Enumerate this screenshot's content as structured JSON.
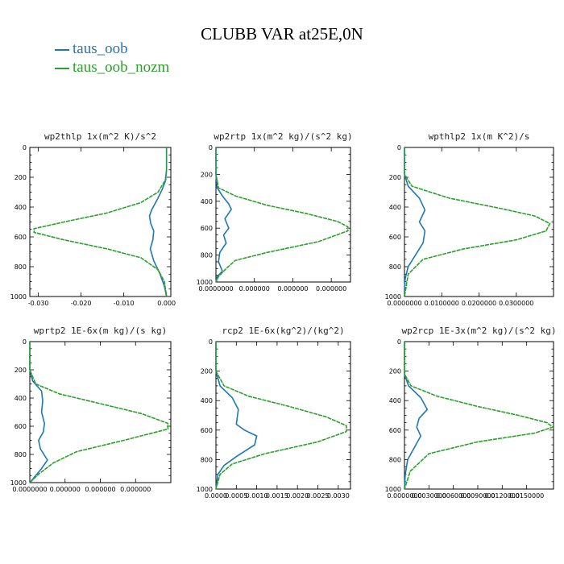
{
  "title": "CLUBB VAR at25E,0N",
  "legend": [
    {
      "label": "taus_oob",
      "color": "#1f77b4"
    },
    {
      "label": "taus_oob_nozm",
      "color": "#2ca02c"
    }
  ],
  "chart_data": [
    {
      "type": "line",
      "title": "wp2thlp  1x(m^2 K)/s^2",
      "xlim": [
        -0.032,
        0.001
      ],
      "ylim": [
        1000,
        0
      ],
      "x_tick_labels": [
        "-0.030",
        "-0.020",
        "-0.010",
        "0.000"
      ],
      "x_ticks": [
        -0.03,
        -0.02,
        -0.01,
        0.0
      ],
      "y_tick_labels": [
        "0",
        "200",
        "400",
        "600",
        "800",
        "1000"
      ],
      "series": [
        {
          "name": "taus_oob",
          "x": [
            0,
            0,
            -0.0002,
            -0.001,
            -0.002,
            -0.0035,
            -0.004,
            -0.0037,
            -0.003,
            -0.0032,
            -0.0038,
            -0.003,
            -0.0015,
            -0.0005,
            0
          ],
          "y": [
            0,
            150,
            220,
            280,
            340,
            420,
            460,
            510,
            560,
            620,
            680,
            760,
            850,
            930,
            1000
          ]
        },
        {
          "name": "taus_oob_nozm",
          "x": [
            0,
            0,
            -0.0003,
            -0.002,
            -0.006,
            -0.014,
            -0.024,
            -0.031,
            -0.031,
            -0.024,
            -0.014,
            -0.006,
            -0.002,
            -0.0005,
            0
          ],
          "y": [
            0,
            150,
            220,
            300,
            370,
            440,
            500,
            545,
            570,
            620,
            680,
            740,
            820,
            900,
            1000
          ]
        }
      ]
    },
    {
      "type": "line",
      "title": "wp2rtp  1x(m^2 kg)/(s^2 kg)",
      "xlim": [
        0,
        1.05e-06
      ],
      "ylim": [
        1000,
        0
      ],
      "x_tick_labels": [
        "0.0000000",
        "0.000000",
        "0.000000",
        "0.000000"
      ],
      "x_ticks": [
        0,
        3e-07,
        6e-07,
        9e-07
      ],
      "y_tick_labels": [
        "0",
        "200",
        "400",
        "600",
        "800",
        "1000"
      ],
      "series": [
        {
          "name": "taus_oob",
          "x": [
            0,
            0,
            1e-08,
            5e-08,
            1e-07,
            1.2e-07,
            7e-08,
            1e-07,
            6e-08,
            8e-08,
            3e-08,
            2e-08,
            5e-08,
            1e-08,
            0
          ],
          "y": [
            0,
            200,
            300,
            360,
            420,
            460,
            530,
            600,
            650,
            710,
            780,
            850,
            920,
            960,
            1000
          ]
        },
        {
          "name": "taus_oob_nozm",
          "x": [
            0,
            0,
            2e-08,
            1.5e-07,
            4e-07,
            7e-07,
            9.5e-07,
            1.03e-06,
            1.03e-06,
            8e-07,
            4e-07,
            1.5e-07,
            8e-08,
            2e-08,
            0
          ],
          "y": [
            0,
            200,
            300,
            360,
            430,
            490,
            550,
            590,
            620,
            700,
            780,
            840,
            900,
            960,
            1000
          ]
        }
      ]
    },
    {
      "type": "line",
      "title": "wpthlp2  1x(m K^2)/s",
      "xlim": [
        0,
        0.04
      ],
      "ylim": [
        1000,
        0
      ],
      "x_tick_labels": [
        "0.0000000",
        "0.0100000",
        "0.0200000",
        "0.0300000"
      ],
      "x_ticks": [
        0,
        0.01,
        0.02,
        0.03
      ],
      "y_tick_labels": [
        "0",
        "200",
        "400",
        "600",
        "800",
        "1000"
      ],
      "series": [
        {
          "name": "taus_oob",
          "x": [
            0,
            0,
            0.001,
            0.004,
            0.0055,
            0.004,
            0.0055,
            0.005,
            0.003,
            0.001,
            0.0002,
            0,
            0
          ],
          "y": [
            0,
            180,
            260,
            340,
            420,
            500,
            560,
            640,
            720,
            800,
            880,
            950,
            1000
          ]
        },
        {
          "name": "taus_oob_nozm",
          "x": [
            0,
            0,
            0.002,
            0.012,
            0.026,
            0.035,
            0.039,
            0.038,
            0.03,
            0.016,
            0.005,
            0.001,
            0
          ],
          "y": [
            0,
            180,
            260,
            340,
            410,
            460,
            510,
            560,
            620,
            680,
            750,
            850,
            1000
          ]
        }
      ]
    },
    {
      "type": "line",
      "title": "wprtp2  1E-6x(m kg)/(s kg)",
      "xlim": [
        0,
        2.4e-05
      ],
      "ylim": [
        1000,
        0
      ],
      "x_tick_labels": [
        "0.0000000",
        "0.000000",
        "0.000000",
        "0.000000"
      ],
      "x_ticks": [
        0,
        6e-06,
        1.2e-05,
        1.8e-05
      ],
      "y_tick_labels": [
        "0",
        "200",
        "400",
        "600",
        "800",
        "1000"
      ],
      "series": [
        {
          "name": "taus_oob",
          "x": [
            0,
            0,
            5e-07,
            2e-06,
            2.2e-06,
            2e-06,
            2.5e-06,
            2.3e-06,
            1.5e-06,
            1.8e-06,
            3e-06,
            2e-06,
            8e-07,
            0
          ],
          "y": [
            0,
            200,
            280,
            350,
            420,
            500,
            580,
            640,
            700,
            760,
            840,
            900,
            960,
            1000
          ]
        },
        {
          "name": "taus_oob_nozm",
          "x": [
            0,
            0,
            1e-06,
            5e-06,
            1.2e-05,
            1.9e-05,
            2.35e-05,
            2.35e-05,
            1.6e-05,
            8e-06,
            4e-06,
            1.5e-06,
            0
          ],
          "y": [
            0,
            200,
            300,
            370,
            440,
            510,
            580,
            620,
            700,
            780,
            860,
            940,
            1000
          ]
        }
      ]
    },
    {
      "type": "line",
      "title": "rcp2  1E-6x(kg^2)/(kg^2)",
      "xlim": [
        0,
        0.0033
      ],
      "ylim": [
        1000,
        0
      ],
      "x_tick_labels": [
        "0.0000",
        "0.0005",
        "0.0010",
        "0.0015",
        "0.0020",
        "0.0025",
        "0.0030"
      ],
      "x_ticks": [
        0,
        0.0005,
        0.001,
        0.0015,
        0.002,
        0.0025,
        0.003
      ],
      "y_tick_labels": [
        "0",
        "200",
        "400",
        "600",
        "800",
        "1000"
      ],
      "series": [
        {
          "name": "taus_oob",
          "x": [
            0,
            0,
            0.0001,
            0.0004,
            0.00055,
            0.0005,
            0.0007,
            0.001,
            0.00095,
            0.0005,
            0.0002,
            5e-05,
            0
          ],
          "y": [
            0,
            200,
            300,
            380,
            460,
            560,
            600,
            640,
            700,
            780,
            840,
            900,
            1000
          ]
        },
        {
          "name": "taus_oob_nozm",
          "x": [
            0,
            0,
            0.0002,
            0.0008,
            0.0018,
            0.0027,
            0.0032,
            0.0032,
            0.0025,
            0.0012,
            0.0004,
            0.0001,
            0
          ],
          "y": [
            0,
            200,
            300,
            370,
            440,
            510,
            570,
            610,
            680,
            760,
            830,
            900,
            1000
          ]
        }
      ]
    },
    {
      "type": "line",
      "title": "wp2rcp  1E-3x(m^2 kg)/(s^2 kg)",
      "xlim": [
        0,
        0.0183
      ],
      "ylim": [
        1000,
        0
      ],
      "x_tick_labels": [
        "0.0000000",
        "0.0030000",
        "0.0060000",
        "0.0090000",
        "0.0120000",
        "0.0150000"
      ],
      "x_ticks": [
        0,
        0.003,
        0.006,
        0.009,
        0.012,
        0.015
      ],
      "y_tick_labels": [
        "0",
        "200",
        "400",
        "600",
        "800",
        "1000"
      ],
      "series": [
        {
          "name": "taus_oob",
          "x": [
            0,
            0,
            0.0005,
            0.002,
            0.0028,
            0.0018,
            0.0015,
            0.002,
            0.0012,
            0.0004,
            0.0001,
            0
          ],
          "y": [
            0,
            220,
            300,
            380,
            460,
            520,
            580,
            640,
            720,
            800,
            900,
            1000
          ]
        },
        {
          "name": "taus_oob_nozm",
          "x": [
            0,
            0,
            0.0008,
            0.004,
            0.009,
            0.014,
            0.0175,
            0.0182,
            0.016,
            0.009,
            0.003,
            0.0007,
            0
          ],
          "y": [
            0,
            220,
            300,
            370,
            440,
            500,
            550,
            580,
            620,
            680,
            760,
            880,
            1000
          ]
        }
      ]
    }
  ]
}
